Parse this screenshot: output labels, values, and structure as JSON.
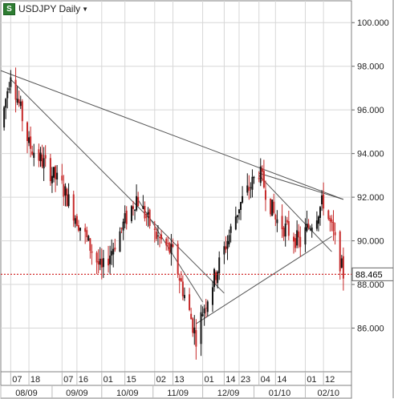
{
  "header": {
    "symbol_title": "USDJPY Daily",
    "logo_glyph": "S"
  },
  "colors": {
    "up_candle": "#111111",
    "down_candle": "#c62828",
    "price_line": "#d32f2f",
    "trendline": "#555555",
    "grid": "#d7d7d7"
  },
  "chart_data": {
    "type": "candlestick",
    "title": "USDJPY Daily",
    "ylim": [
      84.0,
      101.0
    ],
    "y_ticks": [
      "86.000",
      "88.000",
      "90.000",
      "92.000",
      "94.000",
      "96.000",
      "98.000",
      "100.000"
    ],
    "last_price": "88.465",
    "last_price_value": 88.465,
    "days_row": [
      "07",
      "18",
      "07",
      "16",
      "01",
      "15",
      "02",
      "13",
      "01",
      "14",
      "23",
      "04",
      "14",
      "01",
      "12"
    ],
    "months_row": [
      "08/09",
      "09/09",
      "10/09",
      "11/09",
      "12/09",
      "01/10",
      "02/10"
    ],
    "key_points": [
      {
        "date": "2009-08-01",
        "price": 95.2
      },
      {
        "date": "2009-08-07",
        "price": 97.8
      },
      {
        "date": "2009-08-18",
        "price": 94.4
      },
      {
        "date": "2009-09-07",
        "price": 92.5
      },
      {
        "date": "2009-09-16",
        "price": 91.0
      },
      {
        "date": "2009-10-01",
        "price": 88.6
      },
      {
        "date": "2009-10-15",
        "price": 90.9
      },
      {
        "date": "2009-10-22",
        "price": 92.0
      },
      {
        "date": "2009-11-02",
        "price": 90.3
      },
      {
        "date": "2009-11-13",
        "price": 89.4
      },
      {
        "date": "2009-11-27",
        "price": 85.6
      },
      {
        "date": "2009-12-01",
        "price": 86.8
      },
      {
        "date": "2009-12-14",
        "price": 89.6
      },
      {
        "date": "2009-12-23",
        "price": 91.6
      },
      {
        "date": "2010-01-04",
        "price": 93.2
      },
      {
        "date": "2010-01-14",
        "price": 91.0
      },
      {
        "date": "2010-01-29",
        "price": 89.9
      },
      {
        "date": "2010-02-01",
        "price": 90.4
      },
      {
        "date": "2010-02-12",
        "price": 91.8
      },
      {
        "date": "2010-02-17",
        "price": 90.5
      },
      {
        "date": "2010-02-24",
        "price": 88.47
      }
    ],
    "trendlines": [
      {
        "name": "long-term-resistance",
        "from": {
          "date": "2009-08-01",
          "price": 97.8
        },
        "to": {
          "date": "2010-02-24",
          "price": 91.9
        }
      },
      {
        "name": "upper-resistance",
        "from": {
          "date": "2010-01-04",
          "price": 93.1
        },
        "to": {
          "date": "2010-02-24",
          "price": 91.9
        }
      },
      {
        "name": "descending-diagonal",
        "from": {
          "date": "2009-08-07",
          "price": 97.4
        },
        "to": {
          "date": "2009-12-14",
          "price": 87.6
        }
      },
      {
        "name": "channel-1",
        "from": {
          "date": "2009-10-22",
          "price": 92.0
        },
        "to": {
          "date": "2009-12-01",
          "price": 87.2
        }
      },
      {
        "name": "channel-2",
        "from": {
          "date": "2010-01-04",
          "price": 93.0
        },
        "to": {
          "date": "2010-02-17",
          "price": 89.5
        }
      },
      {
        "name": "rising-support",
        "from": {
          "date": "2009-11-27",
          "price": 86.2
        },
        "to": {
          "date": "2010-02-17",
          "price": 90.2
        }
      }
    ]
  }
}
